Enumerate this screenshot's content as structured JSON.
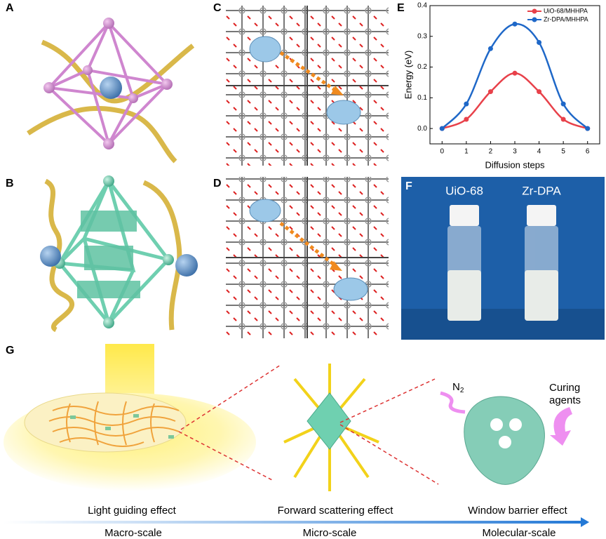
{
  "panel_labels": [
    "A",
    "B",
    "C",
    "D",
    "E",
    "F",
    "G"
  ],
  "chart_data": {
    "type": "line",
    "xlabel": "Diffusion steps",
    "ylabel": "Energy (eV)",
    "x": [
      0,
      1,
      2,
      3,
      4,
      5,
      6
    ],
    "series": [
      {
        "name": "UiO-68/MHHPA",
        "color": "#e8414a",
        "values": [
          0,
          0.03,
          0.12,
          0.18,
          0.12,
          0.03,
          0
        ]
      },
      {
        "name": "Zr-DPA/MHHPA",
        "color": "#1f68c8",
        "values": [
          0,
          0.08,
          0.26,
          0.34,
          0.28,
          0.08,
          0
        ]
      }
    ],
    "xlim": [
      -0.5,
      6.5
    ],
    "xticks": [
      0,
      1,
      2,
      3,
      4,
      5,
      6
    ],
    "ylim": [
      -0.05,
      0.4
    ],
    "yticks": [
      {
        "value": 0,
        "label": "0.0"
      },
      0.1,
      0.2,
      0.3,
      0.4
    ],
    "legend": "upper right"
  },
  "photo": {
    "vials": [
      "UiO-68",
      "Zr-DPA"
    ]
  },
  "panel_g": {
    "gas": {
      "text": "N",
      "subscript": "2"
    },
    "curing": [
      "Curing",
      "agents"
    ],
    "effects": [
      "Light guiding effect",
      "Forward scattering effect",
      "Window barrier effect"
    ],
    "scales": [
      "Macro-scale",
      "Micro-scale",
      "Molecular-scale"
    ]
  }
}
